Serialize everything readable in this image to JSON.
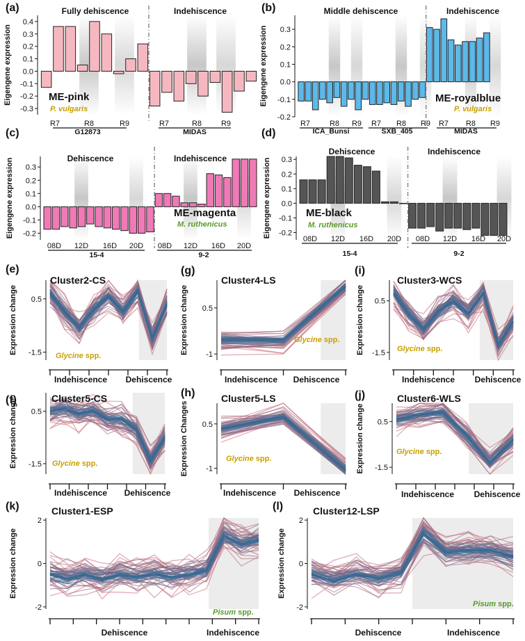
{
  "colors": {
    "pink": "#f5b8c1",
    "royalblue": "#5cb9ea",
    "magenta": "#f07ab7",
    "black": "#555555",
    "gold": "#c8a000",
    "green": "#5a9a2e",
    "red": "#d66a74",
    "blue": "#2f6b98"
  },
  "chart_data": [
    {
      "id": "a",
      "panel": "(a)",
      "type": "bar",
      "module": "ME-pink",
      "species": "P. vulgaris",
      "species_color": "gold",
      "ylabel": "Eigengene expression",
      "ylim": [
        -0.35,
        0.45
      ],
      "yticks": [
        -0.3,
        -0.2,
        -0.1,
        0.0,
        0.1,
        0.2,
        0.3,
        0.4
      ],
      "group_titles": [
        "Fully dehiscence",
        "Indehiscence"
      ],
      "group_names": [
        "G12873",
        "MIDAS"
      ],
      "category_labels": [
        "R7",
        "R8",
        "R9",
        "R7",
        "R8",
        "R9"
      ],
      "values": [
        -0.13,
        0.36,
        0.36,
        0.05,
        0.4,
        0.3,
        -0.02,
        0.1,
        0.22,
        -0.28,
        -0.17,
        -0.24,
        -0.1,
        -0.2,
        -0.09,
        -0.33,
        -0.16,
        -0.08
      ],
      "bar_color": "pink"
    },
    {
      "id": "b",
      "panel": "(b)",
      "type": "bar",
      "module": "ME-royalblue",
      "species": "P. vulgaris",
      "species_color": "gold",
      "ylabel": "Eigengene expression",
      "ylim": [
        -0.2,
        0.38
      ],
      "yticks": [
        -0.2,
        -0.1,
        0.0,
        0.1,
        0.2,
        0.3
      ],
      "group_titles": [
        "Middle dehiscence",
        "Indehiscence"
      ],
      "group_names": [
        "ICA_Bunsi",
        "SXB_405",
        "MIDAS"
      ],
      "category_labels": [
        "R7",
        "R8",
        "R9",
        "R7",
        "R8",
        "R9",
        "R7",
        "R8",
        "R9"
      ],
      "values": [
        -0.11,
        -0.11,
        -0.16,
        -0.1,
        -0.12,
        -0.09,
        -0.14,
        -0.1,
        -0.16,
        -0.1,
        -0.13,
        -0.13,
        -0.12,
        -0.13,
        -0.11,
        -0.14,
        -0.1,
        -0.09,
        0.31,
        0.3,
        0.36,
        0.24,
        0.21,
        0.23,
        0.23,
        0.25,
        0.28
      ],
      "bar_color": "royalblue"
    },
    {
      "id": "c",
      "panel": "(c)",
      "type": "bar",
      "module": "ME-magenta",
      "species": "M. ruthenicus",
      "species_color": "green",
      "ylabel": "Eigengene expression",
      "ylim": [
        -0.25,
        0.38
      ],
      "yticks": [
        -0.2,
        -0.1,
        0.0,
        0.1,
        0.2,
        0.3
      ],
      "group_titles": [
        "Dehiscence",
        "Indehiscence"
      ],
      "group_names": [
        "15-4",
        "9-2"
      ],
      "category_labels": [
        "08D",
        "12D",
        "16D",
        "20D",
        "08D",
        "12D",
        "16D",
        "20D"
      ],
      "values": [
        -0.17,
        -0.17,
        -0.15,
        -0.16,
        -0.15,
        -0.13,
        -0.15,
        -0.16,
        -0.17,
        -0.18,
        -0.2,
        -0.2,
        -0.19,
        0.1,
        0.1,
        0.08,
        0.03,
        0.03,
        0.02,
        0.25,
        0.24,
        0.22,
        0.36,
        0.36,
        0.36
      ],
      "bar_color": "magenta"
    },
    {
      "id": "d",
      "panel": "(d)",
      "type": "bar",
      "module": "ME-black",
      "species": "M. ruthenicus",
      "species_color": "green",
      "ylabel": "Eigengene expression",
      "ylim": [
        -0.25,
        0.32
      ],
      "yticks": [
        -0.2,
        -0.1,
        0.0,
        0.1,
        0.2,
        0.3
      ],
      "group_titles": [
        "Dehiscence",
        "Indehiscence"
      ],
      "group_names": [
        "15-4",
        "9-2"
      ],
      "category_labels": [
        "08D",
        "12D",
        "16D",
        "20D",
        "08D",
        "12D",
        "16D",
        "20D"
      ],
      "values": [
        0.16,
        0.16,
        0.16,
        0.32,
        0.32,
        0.31,
        0.26,
        0.25,
        0.22,
        0.01,
        0.01,
        0.0,
        -0.17,
        -0.17,
        -0.16,
        -0.19,
        -0.17,
        -0.17,
        -0.18,
        -0.17,
        -0.22,
        -0.22,
        -0.22
      ],
      "bar_color": "black"
    },
    {
      "id": "e",
      "panel": "(e)",
      "type": "line",
      "title": "Cluster2-CS",
      "ylabel": "Expression change",
      "yticks": [
        0.5,
        -1.5
      ],
      "ylim": [
        -1.8,
        1.2
      ],
      "species": "Glycine",
      "spp_suffix": " spp.",
      "species_color": "gold",
      "xgroups": [
        "Indehiscence",
        "Dehiscence"
      ],
      "n_ticks": 7,
      "profile": [
        0.7,
        0.0,
        -0.6,
        0.1,
        0.6,
        0.0,
        0.8,
        -1.0,
        0.3
      ],
      "spread": 0.55,
      "shade": [
        0.76,
        1.0
      ]
    },
    {
      "id": "f",
      "panel": "(f)",
      "type": "line",
      "title": "Cluster5-CS",
      "ylabel": "Expression change",
      "yticks": [
        0.5,
        -1.5
      ],
      "ylim": [
        -1.9,
        1.2
      ],
      "species": "Glycine",
      "spp_suffix": " spp.",
      "species_color": "gold",
      "xgroups": [
        "Indehiscence",
        "Dehiscence"
      ],
      "n_ticks": 7,
      "profile": [
        0.5,
        0.6,
        0.4,
        0.5,
        0.2,
        0.2,
        -0.2,
        -1.4,
        -0.5
      ],
      "spread": 0.55,
      "shade": [
        0.72,
        1.0
      ]
    },
    {
      "id": "g",
      "panel": "(g)",
      "type": "line",
      "title": "Cluster4-LS",
      "ylabel": "Expression change",
      "yticks": [
        0.5,
        -1.0
      ],
      "ylim": [
        -1.2,
        1.4
      ],
      "species": "Glycine",
      "spp_suffix": " spp.",
      "species_color": "gold",
      "xgroups": [
        "Indehiscence",
        "Dehiscence"
      ],
      "n_ticks": 3,
      "profile": [
        -0.55,
        -0.55,
        1.2
      ],
      "spread": 0.35,
      "shade": [
        0.8,
        1.0
      ]
    },
    {
      "id": "h",
      "panel": "(h)",
      "type": "line",
      "title": "Cluster5-LS",
      "ylabel": "Expression Changes",
      "yticks": [
        0.5,
        -1.0
      ],
      "ylim": [
        -1.2,
        1.2
      ],
      "species": "Glycine",
      "spp_suffix": " spp.",
      "species_color": "gold",
      "xgroups": [
        "Indehiscence",
        "Dehiscence"
      ],
      "n_ticks": 3,
      "profile": [
        0.35,
        0.75,
        -1.05
      ],
      "spread": 0.35,
      "shade": [
        0.8,
        1.0
      ]
    },
    {
      "id": "i",
      "panel": "(i)",
      "type": "line",
      "title": "Cluster3-WCS",
      "ylabel": "Expression change",
      "yticks": [
        0.5,
        -1.5
      ],
      "ylim": [
        -1.8,
        1.3
      ],
      "species": "Glycine",
      "spp_suffix": " spp.",
      "species_color": "gold",
      "xgroups": [
        "Indehiscence",
        "Dehiscence"
      ],
      "n_ticks": 7,
      "profile": [
        0.8,
        0.0,
        -0.6,
        0.1,
        0.5,
        0.0,
        0.8,
        -1.2,
        -0.3
      ],
      "spread": 0.55,
      "shade": [
        0.72,
        1.0
      ]
    },
    {
      "id": "j",
      "panel": "(j)",
      "type": "line",
      "title": "Cluster6-WLS",
      "ylabel": "Expression change",
      "yticks": [
        0.5,
        -1.5
      ],
      "ylim": [
        -1.8,
        1.3
      ],
      "species": "Glycine",
      "spp_suffix": " spp.",
      "species_color": "gold",
      "xgroups": [
        "Indehiscence",
        "Dehiscence"
      ],
      "n_ticks": 7,
      "profile": [
        0.6,
        0.8,
        0.9,
        -0.1,
        -1.3,
        -0.3
      ],
      "spread": 0.55,
      "shade": [
        0.62,
        1.0
      ]
    },
    {
      "id": "k",
      "panel": "(k)",
      "type": "line",
      "title": "Cluster1-ESP",
      "ylabel": "Expression change",
      "yticks": [
        2,
        0,
        -2
      ],
      "ylim": [
        -2.1,
        2.1
      ],
      "species": "Pisum",
      "spp_suffix": " spp.",
      "species_color": "green",
      "xgroups": [
        "Dehiscence",
        "Indehiscence"
      ],
      "n_ticks": 10,
      "profile": [
        -0.5,
        -0.7,
        -0.5,
        -0.7,
        -0.5,
        -0.6,
        -0.5,
        -0.6,
        -0.5,
        -0.3,
        1.3,
        0.9,
        1.1
      ],
      "spread": 0.8,
      "shade": [
        0.76,
        1.0
      ]
    },
    {
      "id": "l",
      "panel": "(l)",
      "type": "line",
      "title": "Cluster12-LSP",
      "ylabel": "Expression change",
      "yticks": [
        2,
        0,
        -2
      ],
      "ylim": [
        -2.1,
        2.1
      ],
      "species": "Pisum",
      "spp_suffix": " spp.",
      "species_color": "green",
      "xgroups": [
        "Dehiscence",
        "Indehiscence"
      ],
      "n_ticks": 7,
      "profile": [
        -0.5,
        -0.8,
        -0.5,
        -0.7,
        -0.4,
        1.4,
        0.5,
        0.6,
        0.6,
        0.3
      ],
      "spread": 0.8,
      "shade": [
        0.5,
        1.0
      ]
    }
  ]
}
